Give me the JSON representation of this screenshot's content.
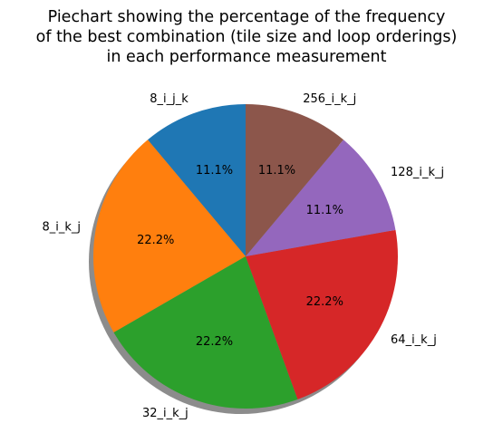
{
  "chart_data": {
    "type": "pie",
    "title": "Piechart showing the percentage of the frequency\nof the best combination (tile size and loop orderings)\nin each performance measurement",
    "categories": [
      "8_i_j_k",
      "8_i_k_j",
      "32_i_k_j",
      "64_i_k_j",
      "128_i_k_j",
      "256_i_k_j"
    ],
    "values": [
      11.1,
      22.2,
      22.2,
      22.2,
      11.1,
      11.1
    ],
    "value_labels": [
      "11.1%",
      "22.2%",
      "22.2%",
      "22.2%",
      "11.1%",
      "11.1%"
    ],
    "colors": [
      "#1f77b4",
      "#ff7f0e",
      "#2ca02c",
      "#d62728",
      "#9467bd",
      "#8c564b"
    ],
    "start_angle": 90,
    "direction": "counterclockwise",
    "shadow": true
  }
}
